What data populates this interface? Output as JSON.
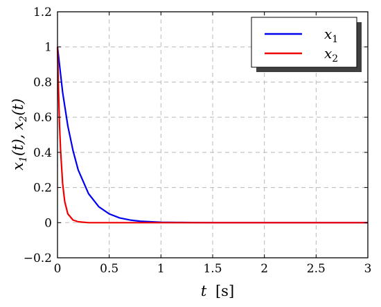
{
  "chart_data": {
    "type": "line",
    "xlabel": "t [s]",
    "xlabel_var": "t",
    "xlabel_unit": "[s]",
    "ylabel": "x1(t), x2(t)",
    "xlim": [
      0,
      3
    ],
    "ylim": [
      -0.2,
      1.2
    ],
    "x_ticks": [
      0,
      0.5,
      1,
      1.5,
      2,
      2.5,
      3
    ],
    "x_tick_labels": [
      "0",
      "0.5",
      "1",
      "1.5",
      "2",
      "2.5",
      "3"
    ],
    "y_ticks": [
      -0.2,
      0,
      0.2,
      0.4,
      0.6,
      0.8,
      1,
      1.2
    ],
    "y_tick_labels": [
      "−0.2",
      "0",
      "0.2",
      "0.4",
      "0.6",
      "0.8",
      "1",
      "1.2"
    ],
    "grid": true,
    "legend_position": "top-right",
    "series": [
      {
        "name": "x1",
        "color": "#0000ee",
        "x": [
          0,
          0.05,
          0.1,
          0.15,
          0.2,
          0.3,
          0.4,
          0.5,
          0.6,
          0.7,
          0.8,
          1.0,
          1.2,
          1.5,
          2.0,
          2.5,
          3.0
        ],
        "y": [
          1.0,
          0.74,
          0.55,
          0.41,
          0.3,
          0.165,
          0.09,
          0.05,
          0.027,
          0.015,
          0.008,
          0.002,
          0.001,
          0.0,
          0.0,
          0.0,
          0.0
        ]
      },
      {
        "name": "x2",
        "color": "#ee0000",
        "x": [
          0,
          0.01,
          0.02,
          0.03,
          0.05,
          0.07,
          0.1,
          0.15,
          0.2,
          0.3,
          0.5,
          1.0,
          1.5,
          2.0,
          3.0
        ],
        "y": [
          1.0,
          0.75,
          0.55,
          0.41,
          0.22,
          0.12,
          0.05,
          0.015,
          0.005,
          0.0,
          0.0,
          0.0,
          0.0,
          0.0,
          0.0
        ]
      }
    ]
  }
}
